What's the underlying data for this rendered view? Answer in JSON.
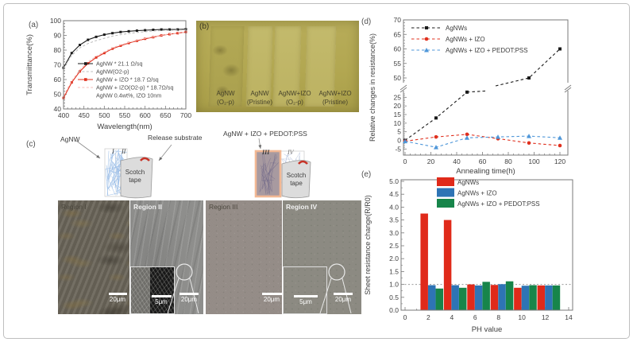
{
  "panel_a": {
    "tag": "(a)"
  },
  "panel_b": {
    "tag": "(b)",
    "samples": [
      {
        "line1": "AgNW",
        "line2": "(O₂-p)"
      },
      {
        "line1": "AgNW",
        "line2": "(Pristine)"
      },
      {
        "line1": "AgNW+IZO",
        "line2": "(O₂-p)"
      },
      {
        "line1": "AgNW+IZO",
        "line2": "(Pristine)"
      }
    ]
  },
  "panel_c": {
    "tag": "(c)",
    "left_schematic": {
      "material_label": "AgNW",
      "substrate_label": "Release substrate",
      "tape_label": "Scotch tape",
      "regions": [
        "I",
        "II"
      ]
    },
    "right_schematic": {
      "material_label": "AgNW + IZO + PEDOT:PSS",
      "tape_label": "Scotch tape",
      "regions": [
        "III",
        "IV"
      ]
    },
    "micrographs": [
      {
        "title": "Region I",
        "scalebar": "20μm"
      },
      {
        "title": "Region II",
        "scalebar": "20μm",
        "inset_scalebar": "5μm"
      },
      {
        "title": "Region III",
        "scalebar": "20μm"
      },
      {
        "title": "Region IV",
        "scalebar": "20μm",
        "inset_scalebar": "5μm"
      }
    ]
  },
  "panel_d": {
    "tag": "(d)"
  },
  "panel_e": {
    "tag": "(e)"
  },
  "chart_data": [
    {
      "id": "panel_a_transmittance",
      "type": "line",
      "xlabel": "Wavelength(nm)",
      "ylabel": "Transmiittance(%)",
      "xlim": [
        400,
        700
      ],
      "ylim": [
        40,
        100
      ],
      "xticks": [
        400,
        450,
        500,
        550,
        600,
        650,
        700
      ],
      "yticks": [
        40,
        50,
        60,
        70,
        80,
        90,
        100
      ],
      "x": [
        400,
        420,
        440,
        460,
        480,
        500,
        520,
        540,
        560,
        580,
        600,
        620,
        640,
        660,
        680,
        700
      ],
      "series": [
        {
          "name": "AgNW * 21.1 Ω/sq",
          "color": "#1a1a1a",
          "line": "solid",
          "marker": "square",
          "values": [
            68,
            78,
            83.5,
            87,
            89,
            90.5,
            91.5,
            92.3,
            92.8,
            93.2,
            93.5,
            93.8,
            94,
            94,
            94,
            94.2
          ]
        },
        {
          "name": "AgNW(O2-p)",
          "color": "#bfbfbf",
          "line": "dashed",
          "marker": "none",
          "values": [
            67.5,
            76.5,
            81.5,
            84.5,
            86.5,
            88,
            89.5,
            90.5,
            91.3,
            92,
            92.5,
            93,
            93.3,
            93.5,
            93.6,
            93.8
          ]
        },
        {
          "name": "AgNW + IZO * 18.7 Ω/sq",
          "color": "#e0301e",
          "line": "solid",
          "marker": "square",
          "values": [
            47.5,
            58,
            65.5,
            71,
            75,
            78,
            81,
            83,
            84.8,
            86.3,
            87.7,
            88.8,
            90,
            90.8,
            91.5,
            92.3
          ]
        },
        {
          "name": "AgNW + IZO(O2-p) * 18.7Ω/sq",
          "color": "#f4bdb8",
          "line": "dashed",
          "marker": "none",
          "values": [
            49,
            59,
            66.5,
            72,
            75.8,
            78.8,
            81.6,
            83.5,
            85.2,
            86.6,
            88,
            89,
            90.1,
            90.9,
            91.6,
            92.4
          ]
        }
      ],
      "note": "AgNW 0.4wt%, IZO 10nm",
      "legend_position": "inside-right-bottom",
      "grid": false
    },
    {
      "id": "panel_d_annealing",
      "type": "line",
      "xlabel": "Annealing time(h)",
      "ylabel": "Relative changes in resistance(%)",
      "xlim": [
        0,
        125
      ],
      "xticks": [
        0,
        20,
        40,
        60,
        80,
        100,
        120
      ],
      "y_axis_break": {
        "lower_range": [
          -5,
          28
        ],
        "upper_range": [
          45,
          70
        ]
      },
      "yticks_lower": [
        -5,
        0,
        5,
        10,
        15,
        20,
        25
      ],
      "yticks_upper": [
        50,
        55,
        60,
        65,
        70
      ],
      "series": [
        {
          "name": "AgNWs",
          "color": "#1a1a1a",
          "marker": "square",
          "points": [
            [
              0,
              0
            ],
            [
              24,
              13
            ],
            [
              48,
              28
            ],
            [
              96,
              50
            ],
            [
              120,
              60
            ]
          ]
        },
        {
          "name": "AgNWs + IZO",
          "color": "#e0301e",
          "marker": "circle",
          "points": [
            [
              0,
              -0.5
            ],
            [
              24,
              2
            ],
            [
              48,
              3.5
            ],
            [
              72,
              1
            ],
            [
              96,
              -1.5
            ],
            [
              120,
              -3
            ]
          ]
        },
        {
          "name": "AgNWs + IZO + PEDOT:PSS",
          "color": "#4f97d9",
          "marker": "triangle",
          "points": [
            [
              0,
              -0.5
            ],
            [
              24,
              -4
            ],
            [
              48,
              1.5
            ],
            [
              72,
              2
            ],
            [
              96,
              2.5
            ],
            [
              120,
              1.5
            ]
          ]
        }
      ],
      "line_style": "dashed",
      "legend_position": "inside-top-left",
      "grid": false
    },
    {
      "id": "panel_e_ph",
      "type": "bar",
      "xlabel": "PH value",
      "ylabel": "Sheet resistance change(R/R0)",
      "xlim": [
        0,
        14
      ],
      "ylim": [
        0,
        5
      ],
      "xticks": [
        0,
        2,
        4,
        6,
        8,
        10,
        12,
        14
      ],
      "yticks": [
        0.0,
        0.5,
        1.0,
        1.5,
        2.0,
        2.5,
        3.0,
        3.5,
        4.0,
        4.5,
        5.0
      ],
      "categories": [
        2,
        4,
        6,
        8,
        10,
        12
      ],
      "series": [
        {
          "name": "AgNWs",
          "color": "#e02a1a",
          "values": [
            3.75,
            3.5,
            1.0,
            0.98,
            0.87,
            0.96
          ]
        },
        {
          "name": "AgNWs + IZO",
          "color": "#2e74b5",
          "values": [
            0.97,
            0.97,
            0.96,
            1.01,
            0.95,
            0.96
          ]
        },
        {
          "name": "AgNWs + IZO + PEDOT:PSS",
          "color": "#17854a",
          "values": [
            0.84,
            0.87,
            1.1,
            1.12,
            0.97,
            0.96
          ]
        }
      ],
      "reference_line": 1.0,
      "legend_position": "inside-top",
      "grid": false
    }
  ]
}
